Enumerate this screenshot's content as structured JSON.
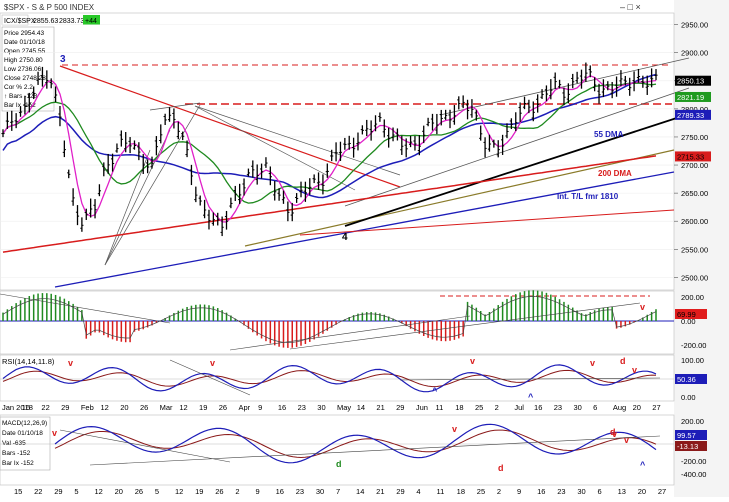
{
  "window": {
    "title": "$SPX - S & P 500 INDEX",
    "close_controls": "– □ ×"
  },
  "header": {
    "symbol": "ICX/$SPX",
    "last1": "2855.63",
    "last2": "2833.73",
    "change": "+44"
  },
  "info_box": {
    "price_lines": [
      "Price    2954.43",
      "Date     01/10/18",
      "Open     2745.55",
      "High     2750.80",
      "Low      2736.06",
      "Close    2748.23",
      "Cor %   2.2",
      "↑ Bars  -128",
      "Bar Ix  -152"
    ],
    "macd_lines": [
      "MACD(12,26,9)",
      "Date     01/10/18",
      "Val    -635",
      "Bars  -152",
      "Bar Ix  -152"
    ]
  },
  "panels": {
    "price": {
      "right_ticks": [
        "2950.00",
        "2900.00",
        "2850.00",
        "2800.00",
        "2750.00",
        "2700.00",
        "2650.00",
        "2600.00",
        "2550.00",
        "2500.00"
      ],
      "value_tags": [
        {
          "text": "2850.13",
          "bg": "#000000",
          "fg": "#ffffff"
        },
        {
          "text": "2821.19",
          "bg": "#1f9a1f",
          "fg": "#ffffff"
        },
        {
          "text": "2789.33",
          "bg": "#1d1db8",
          "fg": "#ffffff"
        },
        {
          "text": "2715.33",
          "bg": "#d81c1c",
          "fg": "#000000"
        }
      ],
      "annotations": [
        {
          "text": "3",
          "color": "#1d1db8"
        },
        {
          "text": "4",
          "color": "#000000"
        },
        {
          "text": "55 DMA",
          "color": "#1d1db8"
        },
        {
          "text": "200 DMA",
          "color": "#d81c1c"
        },
        {
          "text": "Int. T/L fmr 1810",
          "color": "#1d1db8"
        }
      ]
    },
    "osc1": {
      "right_ticks": [
        "200.00",
        "0.00",
        "-200.00"
      ],
      "value_tag": "69.99",
      "marker": "v"
    },
    "rsi": {
      "label": "RSI(14,14,11.8)",
      "right_ticks": [
        "100.00",
        "50.00",
        "0.00"
      ],
      "value_tag": "50.36",
      "markers": [
        "v",
        "v",
        "v",
        "v",
        "d",
        "v",
        "^",
        "^"
      ]
    },
    "macd": {
      "right_ticks": [
        "200.00",
        "-200.00",
        "-400.00"
      ],
      "value_tags": [
        "99.57",
        "-13.13"
      ],
      "markers": [
        "v",
        "d",
        "v",
        "v",
        "d",
        "d",
        "v",
        "^"
      ]
    }
  },
  "x_axis": {
    "top_labels": [
      "Jan 2018",
      "16",
      "22",
      "29",
      "Feb",
      "12",
      "20",
      "26",
      "Mar",
      "12",
      "19",
      "26",
      "Apr",
      "9",
      "16",
      "23",
      "30",
      "May",
      "14",
      "21",
      "29",
      "Jun",
      "11",
      "18",
      "25",
      "2",
      "Jul",
      "16",
      "23",
      "30",
      "6",
      "Aug",
      "20",
      "27"
    ],
    "bottom_labels": [
      "15",
      "22",
      "29",
      "5",
      "12",
      "20",
      "26",
      "5",
      "12",
      "19",
      "26",
      "2",
      "9",
      "16",
      "23",
      "30",
      "7",
      "14",
      "21",
      "29",
      "4",
      "11",
      "18",
      "25",
      "2",
      "9",
      "16",
      "23",
      "30",
      "6",
      "13",
      "20",
      "27"
    ]
  },
  "colors": {
    "price_bars": "#000000",
    "ma_short": "#e020c8",
    "ma_55": "#1d1db8",
    "ma_mid": "#1f8a1f",
    "ma_200": "#d81c1c",
    "trendline_black": "#000000",
    "trendline_red": "#d81c1c",
    "osc_pos": "#1f8a1f",
    "osc_neg": "#d81c1c",
    "rsi_line": "#1d1db8",
    "rsi_signal": "#8b1a1a",
    "macd_line": "#1d1db8",
    "macd_signal": "#8b1a1a"
  },
  "chart_data": {
    "type": "ohlc",
    "series": [
      {
        "name": "$SPX",
        "values": [
          2750,
          2790,
          2800,
          2840,
          2870,
          2780,
          2640,
          2600,
          2620,
          2700,
          2730,
          2740,
          2720,
          2690,
          2780,
          2790,
          2720,
          2640,
          2610,
          2580,
          2640,
          2660,
          2690,
          2700,
          2640,
          2620,
          2650,
          2660,
          2680,
          2720,
          2730,
          2750,
          2760,
          2780,
          2750,
          2730,
          2740,
          2760,
          2780,
          2790,
          2800,
          2805,
          2740,
          2720,
          2760,
          2790,
          2800,
          2820,
          2840,
          2830,
          2850,
          2860,
          2840,
          2830,
          2845,
          2855,
          2840,
          2855
        ]
      },
      {
        "name": "55 DMA",
        "values": []
      },
      {
        "name": "200 DMA",
        "values": []
      }
    ],
    "ylim": [
      2490,
      2960
    ]
  }
}
